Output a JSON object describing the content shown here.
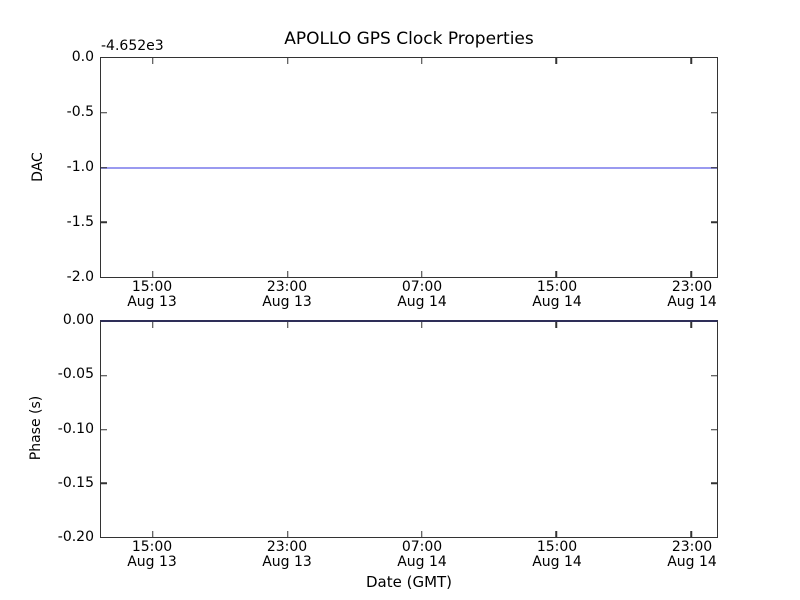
{
  "figure": {
    "title": "APOLLO GPS Clock Properties",
    "background": "#ffffff",
    "spine_color": "#333333",
    "line_color_nominal": "#0000ff"
  },
  "chart_data": [
    {
      "type": "line",
      "subplot": "top",
      "title": "APOLLO GPS Clock Properties",
      "ylabel": "DAC",
      "y_offset_label": "-4.652e3",
      "ylim": [
        -2.0,
        0.0
      ],
      "yticks": [
        "0.0",
        "-0.5",
        "-1.0",
        "-1.5",
        "-2.0"
      ],
      "ytick_positions_pct": [
        25,
        50,
        75
      ],
      "xticks": [
        {
          "time": "15:00",
          "date": "Aug 13"
        },
        {
          "time": "23:00",
          "date": "Aug 13"
        },
        {
          "time": "07:00",
          "date": "Aug 14"
        },
        {
          "time": "15:00",
          "date": "Aug 14"
        },
        {
          "time": "23:00",
          "date": "Aug 14"
        }
      ],
      "xtick_positions_pct": [
        8.4,
        30.3,
        52.1,
        73.9,
        95.8
      ],
      "grid": false,
      "legend": null,
      "series": [
        {
          "name": "DAC",
          "color": "#0000ff",
          "rendered_color": "#9a9af0",
          "y_constant": -1.0,
          "y_constant_with_offset": -4653.0
        }
      ]
    },
    {
      "type": "line",
      "subplot": "bottom",
      "ylabel": "Phase (s)",
      "xlabel": "Date (GMT)",
      "ylim": [
        -0.2,
        0.0
      ],
      "yticks": [
        "0.00",
        "-0.05",
        "-0.10",
        "-0.15",
        "-0.20"
      ],
      "ytick_positions_pct": [
        25,
        50,
        75
      ],
      "xticks": [
        {
          "time": "15:00",
          "date": "Aug 13"
        },
        {
          "time": "23:00",
          "date": "Aug 13"
        },
        {
          "time": "07:00",
          "date": "Aug 14"
        },
        {
          "time": "15:00",
          "date": "Aug 14"
        },
        {
          "time": "23:00",
          "date": "Aug 14"
        }
      ],
      "xtick_positions_pct": [
        8.4,
        30.3,
        52.1,
        73.9,
        95.8
      ],
      "grid": false,
      "legend": null,
      "series": [
        {
          "name": "Phase (s)",
          "color": "#0000ff",
          "rendered_color": "#2e2e58",
          "y_constant": 0.0,
          "note": "line coincides with top axis spine"
        }
      ]
    }
  ]
}
